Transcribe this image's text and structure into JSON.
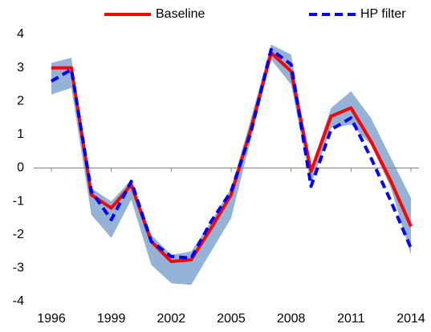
{
  "chart_data": {
    "type": "line",
    "x": [
      1996,
      1997,
      1998,
      1999,
      2000,
      2001,
      2002,
      2003,
      2004,
      2005,
      2006,
      2007,
      2008,
      2009,
      2010,
      2011,
      2012,
      2013,
      2014
    ],
    "series": [
      {
        "name": "Baseline",
        "color": "#ff0000",
        "dash": false,
        "values": [
          3.0,
          3.0,
          -0.8,
          -1.2,
          -0.5,
          -2.2,
          -2.8,
          -2.75,
          -1.8,
          -0.8,
          1.2,
          3.45,
          2.9,
          -0.1,
          1.55,
          1.8,
          0.8,
          -0.4,
          -1.75
        ]
      },
      {
        "name": "HP filter",
        "color": "#0000ff",
        "dash": true,
        "values": [
          2.6,
          2.95,
          -0.7,
          -1.55,
          -0.4,
          -2.2,
          -2.65,
          -2.7,
          -1.6,
          -0.7,
          1.1,
          3.55,
          3.1,
          -0.55,
          1.15,
          1.5,
          0.3,
          -1.0,
          -2.4
        ]
      }
    ],
    "band": {
      "color": "#95b3d7",
      "low": [
        2.2,
        2.4,
        -1.4,
        -2.1,
        -0.95,
        -2.9,
        -3.45,
        -3.5,
        -2.5,
        -1.5,
        0.9,
        3.25,
        2.5,
        -0.5,
        1.2,
        1.3,
        0.7,
        -0.6,
        -2.6
      ],
      "high": [
        3.15,
        3.3,
        -0.6,
        -1.0,
        -0.35,
        -2.0,
        -2.6,
        -2.5,
        -1.6,
        -0.6,
        1.5,
        3.7,
        3.4,
        0.0,
        1.8,
        2.3,
        1.5,
        0.3,
        -0.9
      ]
    },
    "xlim": [
      1996,
      2014
    ],
    "xticks": [
      1996,
      1999,
      2002,
      2005,
      2008,
      2011,
      2014
    ],
    "ylim": [
      -4,
      4
    ],
    "yticks": [
      -4,
      -3,
      -2,
      -1,
      0,
      1,
      2,
      3,
      4
    ]
  }
}
